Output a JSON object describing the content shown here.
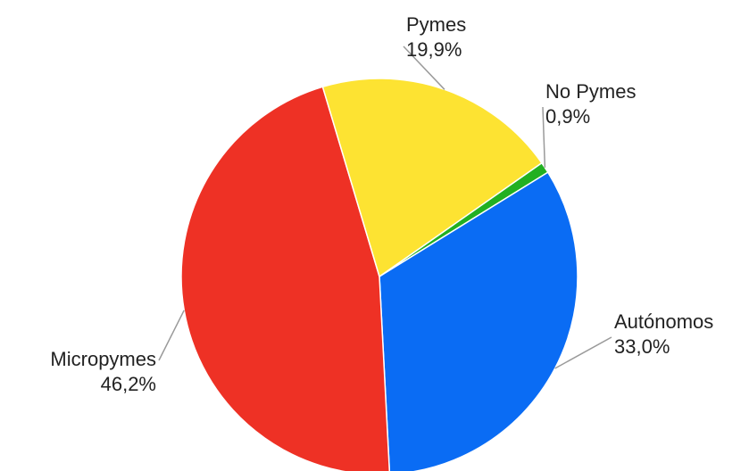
{
  "chart_data": {
    "type": "pie",
    "title": "",
    "slices": [
      {
        "label": "No Pymes",
        "value": 0.9,
        "value_label": "0,9%",
        "color": "#22b022"
      },
      {
        "label": "Autónomos",
        "value": 33.0,
        "value_label": "33,0%",
        "color": "#0a6cf4"
      },
      {
        "label": "Micropymes",
        "value": 46.2,
        "value_label": "46,2%",
        "color": "#ee3125"
      },
      {
        "label": "Pymes",
        "value": 19.9,
        "value_label": "19,9%",
        "color": "#fde332"
      }
    ],
    "start_angle_deg": 55,
    "direction": "clockwise",
    "legend": "none",
    "labels": "outside with leader lines"
  }
}
